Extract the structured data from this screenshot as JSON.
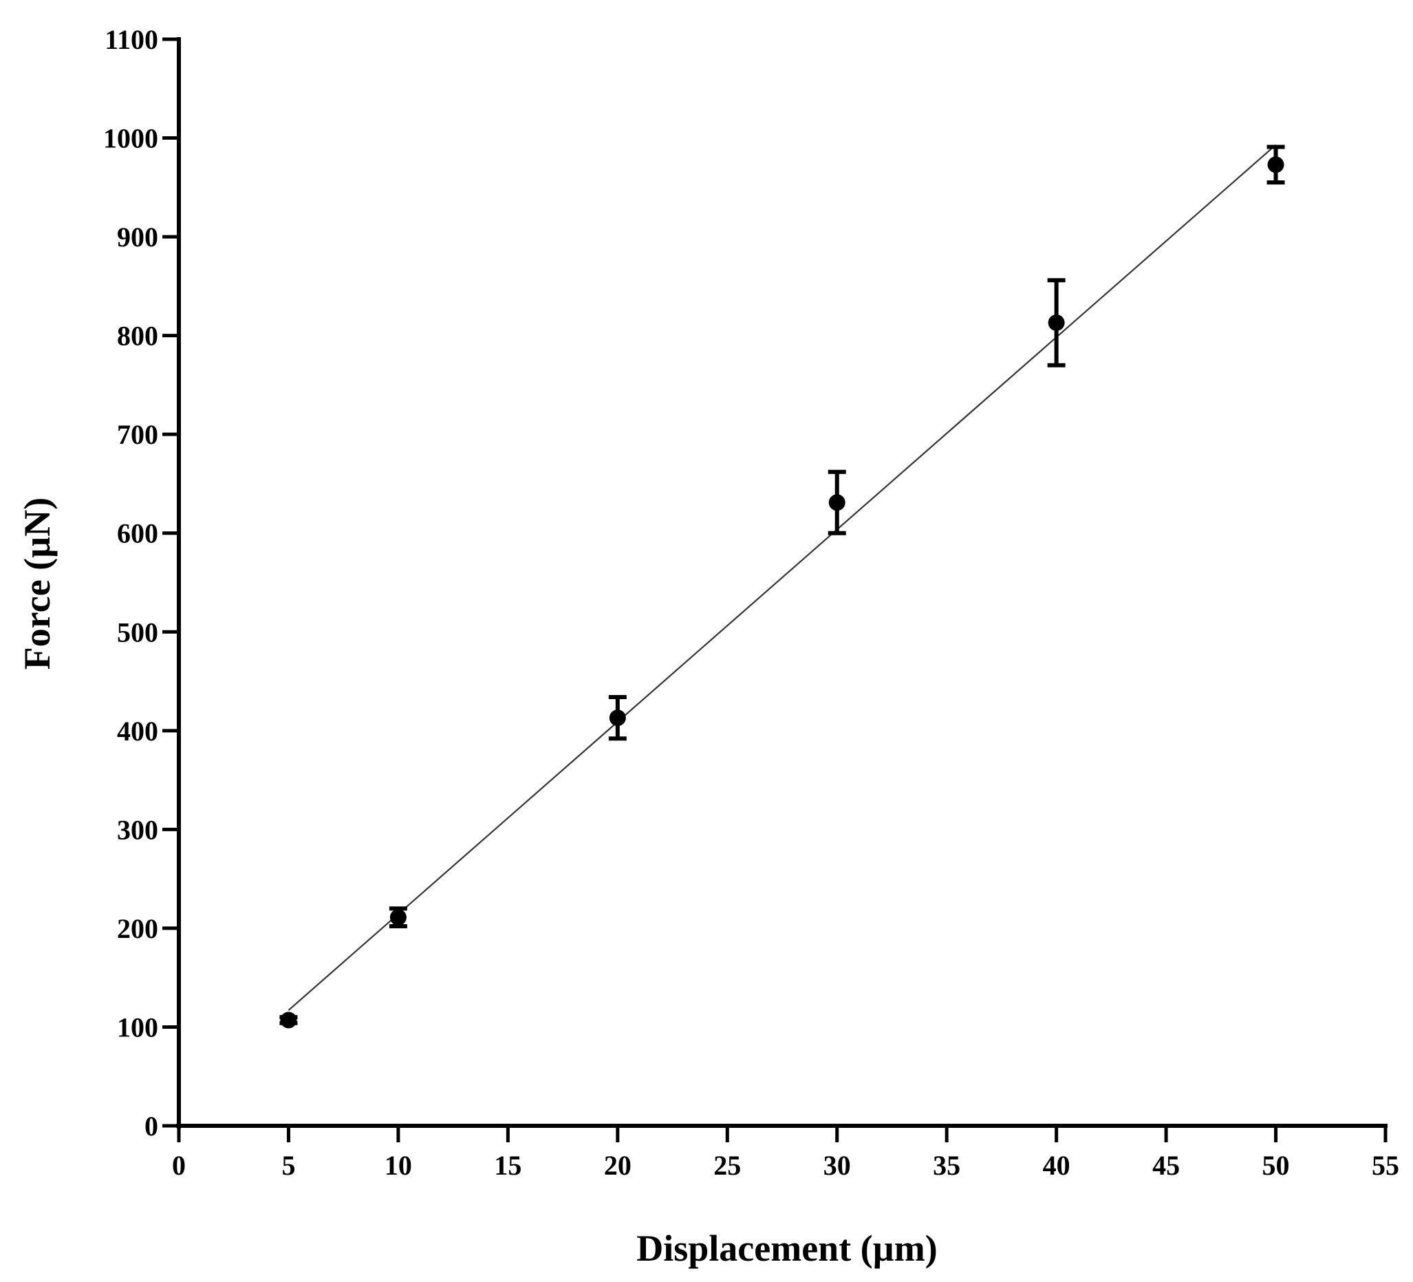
{
  "chart_data": {
    "type": "scatter",
    "title": "",
    "xlabel": "Displacement (µm)",
    "ylabel": "Force (µN)",
    "xlim": [
      0,
      55
    ],
    "ylim": [
      0,
      1100
    ],
    "xticks": [
      0,
      5,
      10,
      15,
      20,
      25,
      30,
      35,
      40,
      45,
      50,
      55
    ],
    "yticks": [
      0,
      100,
      200,
      300,
      400,
      500,
      600,
      700,
      800,
      900,
      1000,
      1100
    ],
    "grid": false,
    "legend": "none",
    "series": [
      {
        "points": [
          {
            "x": 5,
            "y": 107,
            "err": 3
          },
          {
            "x": 10,
            "y": 211,
            "err": 9
          },
          {
            "x": 20,
            "y": 413,
            "err": 21
          },
          {
            "x": 30,
            "y": 631,
            "err": 31
          },
          {
            "x": 40,
            "y": 813,
            "err": 43
          },
          {
            "x": 50,
            "y": 973,
            "err": 18
          }
        ]
      }
    ],
    "fit_line": {
      "x": [
        5,
        50
      ],
      "y": [
        117,
        993
      ]
    },
    "colors": {
      "marker": "#000000",
      "line": "#333333",
      "axis": "#000000"
    }
  }
}
